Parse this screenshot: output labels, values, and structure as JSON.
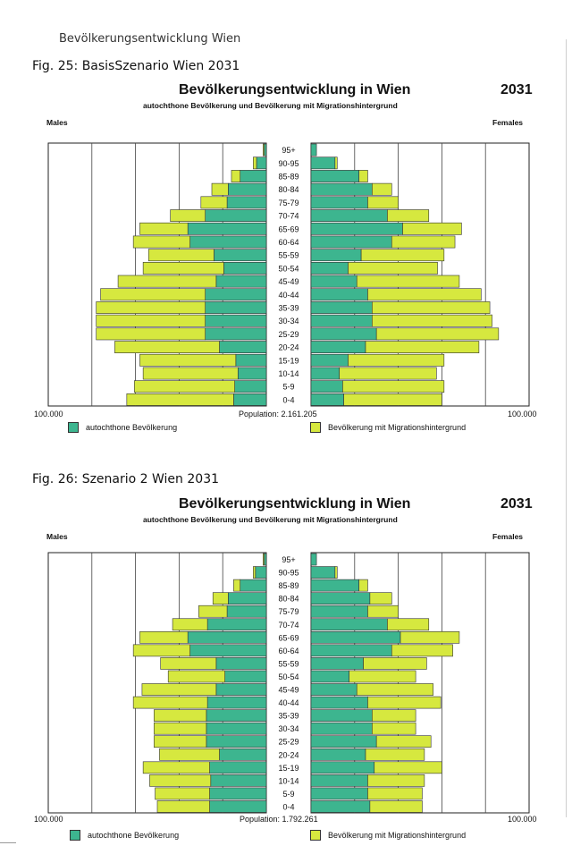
{
  "document_header": "Bevölkerungsentwicklung Wien",
  "colors": {
    "autochthone": "#3db58f",
    "migration": "#d6e83f",
    "outline": "#333333",
    "grid": "#444444"
  },
  "chart_data": [
    {
      "caption": "Fig.  25: BasisSzenario Wien  2031",
      "type": "bar",
      "orientation": "population-pyramid",
      "title": "Bevölkerungsentwicklung in Wien",
      "year": "2031",
      "subtitle": "autochthone Bevölkerung und Bevölkerung mit Migrationshintergrund",
      "males_label": "Males",
      "females_label": "Females",
      "axis_left_label": "100.000",
      "axis_right_label": "100.000",
      "population_label": "Population:  2.161.205",
      "legend": {
        "autochthone": "autochthone Bevölkerung",
        "migration": "Bevölkerung mit Migrationshintergrund"
      },
      "xmax": 100000,
      "grid": [
        0,
        20000,
        40000,
        60000,
        80000,
        100000
      ],
      "categories": [
        "95+",
        "90-95",
        "85-89",
        "80-84",
        "75-79",
        "70-74",
        "65-69",
        "60-64",
        "55-59",
        "50-54",
        "45-49",
        "40-44",
        "35-39",
        "30-34",
        "25-29",
        "20-24",
        "15-19",
        "10-14",
        "5-9",
        "0-4"
      ],
      "series": [
        {
          "name": "autochthone Bevölkerung",
          "side": "male",
          "values": [
            1000,
            4500,
            12000,
            17500,
            18000,
            28000,
            36000,
            35000,
            24000,
            19500,
            23000,
            28000,
            28000,
            28000,
            28000,
            21500,
            14000,
            13000,
            14500,
            15000
          ]
        },
        {
          "name": "Bevölkerung mit Migrationshintergrund",
          "side": "male",
          "values": [
            500,
            1500,
            4000,
            7500,
            12000,
            16000,
            22000,
            26000,
            30000,
            37000,
            45000,
            48000,
            50000,
            50000,
            50000,
            48000,
            44000,
            43500,
            46000,
            49000
          ]
        },
        {
          "name": "autochthone Bevölkerung",
          "side": "female",
          "values": [
            2500,
            11000,
            22000,
            28000,
            26000,
            35000,
            42000,
            37000,
            23000,
            17000,
            21000,
            26000,
            28000,
            28000,
            30000,
            25000,
            17000,
            13000,
            14500,
            15000
          ]
        },
        {
          "name": "Bevölkerung mit Migrationshintergrund",
          "side": "female",
          "values": [
            0,
            1000,
            4000,
            9000,
            14000,
            19000,
            27000,
            29000,
            38000,
            41000,
            47000,
            52000,
            54000,
            55000,
            56000,
            52000,
            44000,
            44500,
            46500,
            45000
          ]
        }
      ]
    },
    {
      "caption": "Fig.  26: Szenario 2 Wien 2031",
      "type": "bar",
      "orientation": "population-pyramid",
      "title": "Bevölkerungsentwicklung in Wien",
      "year": "2031",
      "subtitle": "autochthone Bevölkerung und Bevölkerung mit Migrationshintergrund",
      "males_label": "Males",
      "females_label": "Females",
      "axis_left_label": "100.000",
      "axis_right_label": "100.000",
      "population_label": "Population:  1.792.261",
      "legend": {
        "autochthone": "autochthone Bevölkerung",
        "migration": "Bevölkerung mit Migrationshintergrund"
      },
      "xmax": 100000,
      "grid": [
        0,
        20000,
        40000,
        60000,
        80000,
        100000
      ],
      "categories": [
        "95+",
        "90-95",
        "85-89",
        "80-84",
        "75-79",
        "70-74",
        "65-69",
        "60-64",
        "55-59",
        "50-54",
        "45-49",
        "40-44",
        "35-39",
        "30-34",
        "25-29",
        "20-24",
        "15-19",
        "10-14",
        "5-9",
        "0-4"
      ],
      "series": [
        {
          "name": "autochthone Bevölkerung",
          "side": "male",
          "values": [
            1000,
            5000,
            12000,
            17500,
            18000,
            27000,
            36000,
            35000,
            23000,
            19000,
            23000,
            27000,
            27500,
            27500,
            27500,
            21500,
            26000,
            25500,
            26000,
            26000
          ]
        },
        {
          "name": "Bevölkerung mit Migrationshintergrund",
          "side": "male",
          "values": [
            500,
            1000,
            3000,
            7000,
            13000,
            16000,
            22000,
            26000,
            25500,
            26000,
            34000,
            34000,
            24000,
            24000,
            24000,
            27500,
            30500,
            28000,
            25000,
            24000
          ]
        },
        {
          "name": "autochthone Bevölkerung",
          "side": "female",
          "values": [
            2500,
            11000,
            22000,
            27000,
            26000,
            35000,
            41000,
            37000,
            24000,
            17500,
            21000,
            26000,
            28000,
            28000,
            30000,
            25000,
            29000,
            26000,
            26000,
            27000
          ]
        },
        {
          "name": "Bevölkerung mit Migrationshintergrund",
          "side": "female",
          "values": [
            0,
            1000,
            4000,
            10000,
            14000,
            19000,
            27000,
            28000,
            29000,
            30500,
            35000,
            33500,
            20000,
            20000,
            25000,
            27000,
            31000,
            26000,
            25000,
            24000
          ]
        }
      ]
    }
  ]
}
